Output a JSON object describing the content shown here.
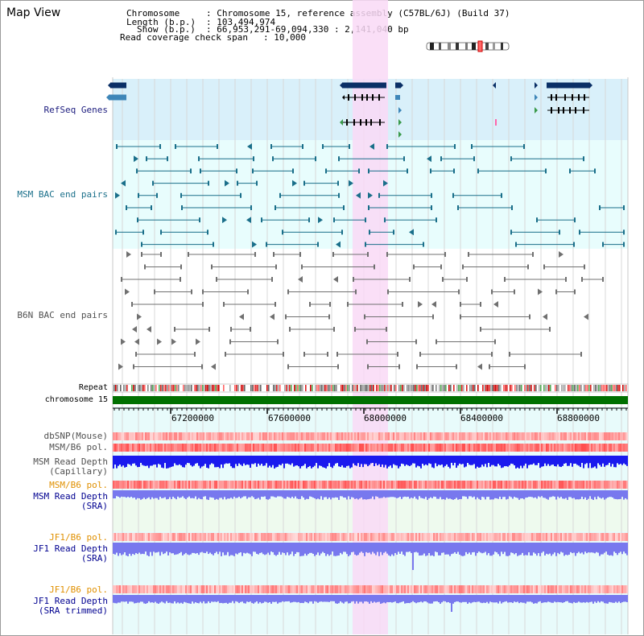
{
  "window": {
    "title": "Map View"
  },
  "info": {
    "chromosome_key": "Chromosome",
    "chromosome_val": ": Chromosome 15, reference assembly (C57BL/6J) (Build 37)",
    "length_key": "Length (b.p.)",
    "length_val": ": 103,494,974",
    "show_key": "Show (b.p.)",
    "show_val": ": 66,953,291-69,094,330 : 2,141,040 bp",
    "span_key": "Read coverage check span",
    "span_val": ": 10,000"
  },
  "tracks": {
    "refseq": "RefSeq Genes",
    "msm_bac": "MSM BAC end pairs",
    "b6n_bac": "B6N BAC end pairs",
    "repeat": "Repeat",
    "chromosome": "chromosome 15",
    "dbsnp": "dbSNP(Mouse)",
    "msm_b6_pol": "MSM/B6 pol.",
    "msm_depth_cap_1": "MSM Read Depth",
    "msm_depth_cap_2": "(Capillary)",
    "msm_b6_pol_sra": "MSM/B6 pol.",
    "msm_depth_sra_1": "MSM Read Depth",
    "msm_depth_sra_2": "(SRA)",
    "jf1_b6_pol": "JF1/B6 pol.",
    "jf1_depth_sra_1": "JF1 Read Depth",
    "jf1_depth_sra_2": "(SRA)",
    "jf1_b6_pol_trim": "JF1/B6 pol.",
    "jf1_depth_trim_1": "JF1 Read Depth",
    "jf1_depth_trim_2": "(SRA trimmed)"
  },
  "axis": {
    "ticks": [
      "67200000",
      "67600000",
      "68000000",
      "68400000",
      "68800000"
    ]
  },
  "colors": {
    "refseq_bg": "#d9f0fa",
    "bac_bg": "#e8fdfd",
    "highlight": "#f9d9f6",
    "gene_dark": "#0a2f66",
    "gene_mid": "#3e86b8",
    "gene_green": "#3a9a4a",
    "msm_line": "#1a6f8a",
    "b6n_line": "#707070",
    "chromosome_green": "#007000",
    "label_navy": "#202080",
    "label_orange": "#e09000",
    "label_blue": "#000090",
    "depth_blue": "#1a1aee",
    "depth_light": "#7878ee",
    "pol_red": "#ee3333"
  }
}
